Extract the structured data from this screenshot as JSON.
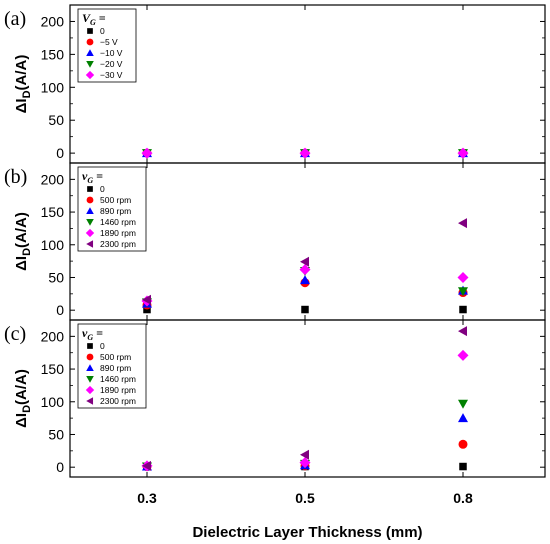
{
  "chart_data": {
    "type": "scatter",
    "xlabel": "Dielectric Layer Thickness (mm)",
    "x_ticks": [
      "0.3",
      "0.5",
      "0.8"
    ],
    "panels": [
      {
        "label": "(a)",
        "ylabel": "ΔI_D(A/A)",
        "ylim": [
          -15,
          225
        ],
        "y_ticks": [
          0,
          50,
          100,
          150,
          200
        ],
        "legend_title": "V_G =",
        "legend_title_style": "plain",
        "series": [
          {
            "name": "0",
            "marker": "square",
            "color": "#000000",
            "values": [
              0,
              0,
              0
            ]
          },
          {
            "name": "−5 V",
            "marker": "circle",
            "color": "#ff0000",
            "values": [
              0,
              0,
              0
            ]
          },
          {
            "name": "−10 V",
            "marker": "triangle-up",
            "color": "#0000ff",
            "values": [
              0,
              0,
              0
            ]
          },
          {
            "name": "−20 V",
            "marker": "triangle-down",
            "color": "#008000",
            "values": [
              0,
              0,
              0
            ]
          },
          {
            "name": "−30 V",
            "marker": "diamond",
            "color": "#ff00ff",
            "values": [
              0,
              0,
              0
            ]
          }
        ]
      },
      {
        "label": "(b)",
        "ylabel": "ΔI_D(A/A)",
        "ylim": [
          -15,
          225
        ],
        "y_ticks": [
          0,
          50,
          100,
          150,
          200
        ],
        "legend_title": "v_G =",
        "legend_title_style": "italic",
        "series": [
          {
            "name": "0",
            "marker": "square",
            "color": "#000000",
            "values": [
              1,
              1,
              1
            ]
          },
          {
            "name": "500 rpm",
            "marker": "circle",
            "color": "#ff0000",
            "values": [
              8,
              42,
              27
            ]
          },
          {
            "name": "890 rpm",
            "marker": "triangle-up",
            "color": "#0000ff",
            "values": [
              10,
              46,
              30
            ]
          },
          {
            "name": "1460 rpm",
            "marker": "triangle-down",
            "color": "#008000",
            "values": [
              12,
              60,
              29
            ]
          },
          {
            "name": "1890 rpm",
            "marker": "diamond",
            "color": "#ff00ff",
            "values": [
              14,
              62,
              50
            ]
          },
          {
            "name": "2300 rpm",
            "marker": "triangle-left",
            "color": "#800080",
            "values": [
              16,
              74,
              133
            ]
          }
        ]
      },
      {
        "label": "(c)",
        "ylabel": "ΔI_D(A/A)",
        "ylim": [
          -15,
          225
        ],
        "y_ticks": [
          0,
          50,
          100,
          150,
          200
        ],
        "legend_title": "v_G =",
        "legend_title_style": "italic",
        "series": [
          {
            "name": "0",
            "marker": "square",
            "color": "#000000",
            "values": [
              1,
              1,
              1
            ]
          },
          {
            "name": "500 rpm",
            "marker": "circle",
            "color": "#ff0000",
            "values": [
              1,
              2,
              35
            ]
          },
          {
            "name": "890 rpm",
            "marker": "triangle-up",
            "color": "#0000ff",
            "values": [
              1,
              3,
              75
            ]
          },
          {
            "name": "1460 rpm",
            "marker": "triangle-down",
            "color": "#008000",
            "values": [
              1,
              5,
              97
            ]
          },
          {
            "name": "1890 rpm",
            "marker": "diamond",
            "color": "#ff00ff",
            "values": [
              2,
              7,
              171
            ]
          },
          {
            "name": "2300 rpm",
            "marker": "triangle-left",
            "color": "#800080",
            "values": [
              2,
              19,
              208
            ]
          }
        ]
      }
    ]
  }
}
